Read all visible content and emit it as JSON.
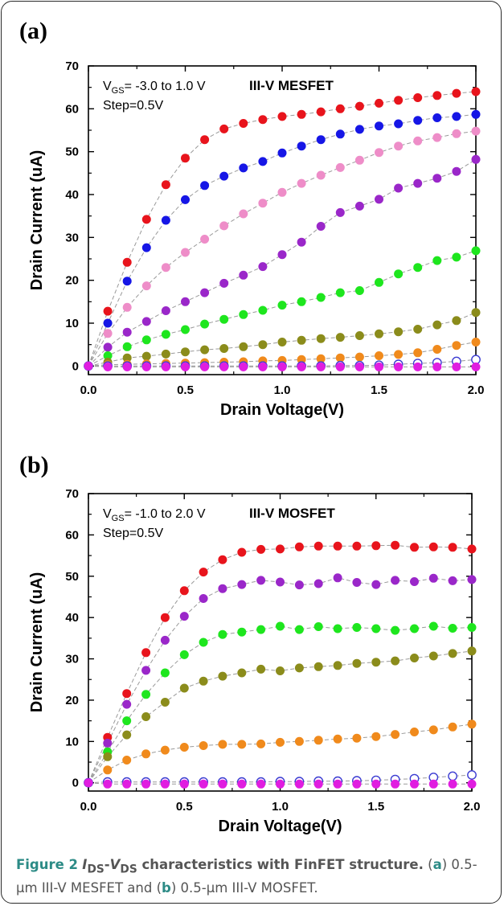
{
  "caption": {
    "figure_label": "Figure 2",
    "title_i": "I",
    "title_ds1": "DS",
    "title_dash": "-",
    "title_v": "V",
    "title_ds2": "DS",
    "title_rest": " characteristics with FinFET structure.",
    "desc_open": " (",
    "desc_a": "a",
    "desc_mid": ") 0.5-μm III-V MESFET and (",
    "desc_b": "b",
    "desc_end": ") 0.5-μm III-V MOSFET."
  },
  "chart_data": [
    {
      "panel_label": "(a)",
      "type": "scatter",
      "device_label": "III-V MESFET",
      "vgs_label_v": "V",
      "vgs_label_sub": "GS",
      "vgs_label_rest": "= -3.0 to 1.0 V",
      "step_label": "Step=0.5V",
      "xlabel": "Drain Voltage(V)",
      "ylabel": "Drain Current (uA)",
      "xlim": [
        0,
        2.0
      ],
      "ylim": [
        -2,
        70
      ],
      "xticks": [
        "0.0",
        "0.5",
        "1.0",
        "1.5",
        "2.0"
      ],
      "xtick_values": [
        0,
        0.5,
        1.0,
        1.5,
        2.0
      ],
      "yticks": [
        "0",
        "10",
        "20",
        "30",
        "40",
        "50",
        "60",
        "70"
      ],
      "ytick_values": [
        0,
        10,
        20,
        30,
        40,
        50,
        60,
        70
      ],
      "x": [
        0,
        0.1,
        0.2,
        0.3,
        0.4,
        0.5,
        0.6,
        0.7,
        0.8,
        0.9,
        1.0,
        1.1,
        1.2,
        1.3,
        1.4,
        1.5,
        1.6,
        1.7,
        1.8,
        1.9,
        2.0
      ],
      "series": [
        {
          "color": "#e8141c",
          "filled": true,
          "values": [
            0,
            12.8,
            24.2,
            34.2,
            42.3,
            48.5,
            52.8,
            55.3,
            56.6,
            57.5,
            58.2,
            58.7,
            59.3,
            60.0,
            60.6,
            61.3,
            62.0,
            62.6,
            63.1,
            63.6,
            64.0
          ]
        },
        {
          "color": "#1616e6",
          "filled": true,
          "values": [
            0,
            10.0,
            19.8,
            27.6,
            34.0,
            38.8,
            42.1,
            44.3,
            46.2,
            47.7,
            49.7,
            51.3,
            52.8,
            54.1,
            55.2,
            56.0,
            56.5,
            57.3,
            57.9,
            58.2,
            58.7
          ]
        },
        {
          "color": "#ee8dc8",
          "filled": true,
          "values": [
            0,
            7.6,
            13.7,
            18.7,
            23.0,
            26.5,
            29.6,
            32.7,
            35.5,
            38.0,
            40.5,
            42.6,
            44.5,
            46.3,
            48.0,
            49.8,
            51.3,
            52.5,
            53.3,
            54.2,
            54.8
          ]
        },
        {
          "color": "#9a27c9",
          "filled": true,
          "values": [
            0,
            4.4,
            7.9,
            10.4,
            12.9,
            15.0,
            17.1,
            19.3,
            21.2,
            23.2,
            26.0,
            28.9,
            32.6,
            35.8,
            37.3,
            38.9,
            41.5,
            42.6,
            43.8,
            45.4,
            48.2
          ]
        },
        {
          "color": "#1ee61e",
          "filled": true,
          "values": [
            0,
            2.4,
            4.5,
            6.1,
            7.4,
            8.5,
            9.8,
            10.9,
            12.0,
            13.0,
            14.2,
            15.0,
            16.0,
            17.1,
            17.6,
            19.5,
            21.5,
            23.0,
            24.6,
            25.4,
            26.9
          ]
        },
        {
          "color": "#8b8c1b",
          "filled": true,
          "values": [
            0,
            0.9,
            1.9,
            2.3,
            2.8,
            3.3,
            3.8,
            4.1,
            4.5,
            5.0,
            5.6,
            6.0,
            6.4,
            6.7,
            7.1,
            7.5,
            8.0,
            8.6,
            9.6,
            10.6,
            12.5
          ]
        },
        {
          "color": "#f08a1c",
          "filled": true,
          "values": [
            0,
            0.3,
            0.4,
            0.5,
            0.6,
            0.7,
            0.8,
            0.9,
            1.0,
            1.2,
            1.3,
            1.5,
            1.7,
            1.9,
            2.1,
            2.4,
            2.7,
            3.1,
            3.9,
            4.8,
            5.6
          ]
        },
        {
          "color": "#3c3cd2",
          "filled": false,
          "values": [
            0,
            0,
            0,
            0,
            0,
            0,
            0,
            0,
            0,
            0,
            0,
            0,
            0,
            0.1,
            0.1,
            0.2,
            0.4,
            0.6,
            0.8,
            1.1,
            1.5
          ]
        },
        {
          "color": "#e01de0",
          "filled": true,
          "values": [
            0,
            -0.2,
            -0.2,
            -0.2,
            -0.2,
            -0.2,
            -0.2,
            -0.2,
            -0.2,
            -0.2,
            -0.2,
            -0.2,
            -0.2,
            -0.2,
            -0.2,
            -0.2,
            -0.2,
            -0.2,
            -0.2,
            -0.2,
            -0.2
          ]
        }
      ]
    },
    {
      "panel_label": "(b)",
      "type": "scatter",
      "device_label": "III-V MOSFET",
      "vgs_label_v": "V",
      "vgs_label_sub": "GS",
      "vgs_label_rest": "= -1.0 to 2.0 V",
      "step_label": "Step=0.5V",
      "xlabel": "Drain Voltage(V)",
      "ylabel": "Drain Current (uA)",
      "xlim": [
        0,
        2.0
      ],
      "ylim": [
        -2,
        70
      ],
      "xticks": [
        "0.0",
        "0.5",
        "1.0",
        "1.5",
        "2.0"
      ],
      "xtick_values": [
        0,
        0.5,
        1.0,
        1.5,
        2.0
      ],
      "yticks": [
        "0",
        "10",
        "20",
        "30",
        "40",
        "50",
        "60",
        "70"
      ],
      "ytick_values": [
        0,
        10,
        20,
        30,
        40,
        50,
        60,
        70
      ],
      "x": [
        0,
        0.1,
        0.2,
        0.3,
        0.4,
        0.5,
        0.6,
        0.7,
        0.8,
        0.9,
        1.0,
        1.1,
        1.2,
        1.3,
        1.4,
        1.5,
        1.6,
        1.7,
        1.8,
        1.9,
        2.0
      ],
      "series": [
        {
          "color": "#e8141c",
          "filled": true,
          "values": [
            0,
            11.0,
            21.6,
            31.5,
            40.0,
            46.5,
            51.0,
            54.0,
            55.8,
            56.5,
            56.6,
            57.1,
            57.3,
            57.3,
            57.3,
            57.4,
            57.5,
            57.0,
            57.1,
            57.0,
            56.6
          ]
        },
        {
          "color": "#9a27c9",
          "filled": true,
          "values": [
            0,
            9.6,
            19.0,
            27.2,
            34.5,
            40.3,
            44.6,
            47.0,
            48.0,
            49.0,
            48.6,
            47.9,
            48.2,
            49.6,
            48.5,
            48.0,
            49.0,
            48.7,
            49.5,
            48.9,
            49.2
          ]
        },
        {
          "color": "#1ee61e",
          "filled": true,
          "values": [
            0,
            7.5,
            15.0,
            21.4,
            26.6,
            31.0,
            34.0,
            35.9,
            36.5,
            37.1,
            37.9,
            37.1,
            37.8,
            37.3,
            37.6,
            37.3,
            36.9,
            37.3,
            37.9,
            37.4,
            37.6
          ]
        },
        {
          "color": "#8b8c1b",
          "filled": true,
          "values": [
            0,
            6.3,
            11.6,
            16.0,
            19.5,
            22.9,
            24.6,
            25.8,
            26.6,
            27.5,
            27.1,
            27.8,
            28.1,
            28.4,
            28.9,
            29.2,
            29.5,
            30.2,
            30.7,
            31.3,
            31.9
          ]
        },
        {
          "color": "#f08a1c",
          "filled": true,
          "values": [
            0,
            3.1,
            5.5,
            7.0,
            7.9,
            8.6,
            9.0,
            9.3,
            9.3,
            9.4,
            9.8,
            10.0,
            10.3,
            10.6,
            10.8,
            11.2,
            11.7,
            12.3,
            12.8,
            13.5,
            14.2
          ]
        },
        {
          "color": "#3c3cd2",
          "filled": false,
          "values": [
            0,
            0.2,
            0.2,
            0.2,
            0.2,
            0.2,
            0.2,
            0.2,
            0.2,
            0.2,
            0.3,
            0.3,
            0.4,
            0.4,
            0.5,
            0.6,
            0.8,
            1.0,
            1.3,
            1.6,
            1.9
          ]
        },
        {
          "color": "#e01de0",
          "filled": true,
          "values": [
            0,
            -0.3,
            -0.3,
            -0.3,
            -0.3,
            -0.3,
            -0.3,
            -0.3,
            -0.3,
            -0.3,
            -0.3,
            -0.3,
            -0.3,
            -0.3,
            -0.3,
            -0.3,
            -0.3,
            -0.3,
            -0.3,
            -0.3,
            -0.3
          ]
        }
      ]
    }
  ]
}
